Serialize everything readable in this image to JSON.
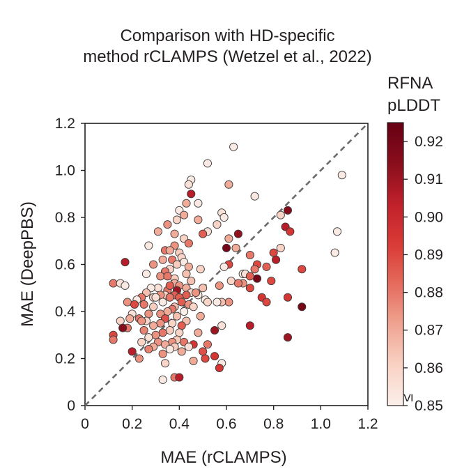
{
  "colors": {
    "cmap": [
      "#fbefea",
      "#f9d2c4",
      "#f0a592",
      "#e56b5d",
      "#d93a35",
      "#c0202b",
      "#880d1c",
      "#660013"
    ],
    "point_edge": "#3a3a3a",
    "diagonal": "#6b6b6b",
    "axis": "#231f20"
  },
  "chart_data": {
    "type": "scatter",
    "title": [
      "Comparison with HD-specific",
      "method rCLAMPS (Wetzel et al., 2022)"
    ],
    "xlabel": "MAE (rCLAMPS)",
    "ylabel": "MAE (DeepPBS)",
    "xlim": [
      0,
      1.2
    ],
    "ylim": [
      0,
      1.2
    ],
    "x_ticks": [
      0,
      0.2,
      0.4,
      0.6,
      0.8,
      1.0,
      1.2
    ],
    "x_tick_labels": [
      "0",
      "0.2",
      "0.4",
      "0.6",
      "0.8",
      "1.0",
      "1.2"
    ],
    "y_ticks": [
      0,
      0.2,
      0.4,
      0.6,
      0.8,
      1.0,
      1.2
    ],
    "y_tick_labels": [
      "0",
      "0.2",
      "0.4",
      "0.6",
      "0.8",
      "1.0",
      "1.2"
    ],
    "reference_line": {
      "from": [
        0,
        0
      ],
      "to": [
        1.2,
        1.2
      ],
      "style": "dashed"
    },
    "colorbar": {
      "label": [
        "RFNA",
        "pLDDT"
      ],
      "range": [
        0.85,
        0.925
      ],
      "ticks": [
        0.85,
        0.86,
        0.87,
        0.88,
        0.89,
        0.9,
        0.91,
        0.92
      ],
      "tick_labels": [
        "0.85",
        "0.86",
        "0.87",
        "0.88",
        "0.89",
        "0.90",
        "0.91",
        "0.92"
      ],
      "min_marker": "≤"
    },
    "points": [
      [
        0.63,
        1.1,
        0.852
      ],
      [
        0.52,
        1.03,
        0.852
      ],
      [
        1.09,
        0.98,
        0.852
      ],
      [
        0.45,
        0.96,
        0.852
      ],
      [
        0.44,
        0.94,
        0.855
      ],
      [
        0.61,
        0.94,
        0.87
      ],
      [
        0.45,
        0.9,
        0.905
      ],
      [
        0.72,
        0.89,
        0.853
      ],
      [
        0.43,
        0.86,
        0.87
      ],
      [
        0.48,
        0.86,
        0.852
      ],
      [
        0.86,
        0.83,
        0.915
      ],
      [
        0.4,
        0.83,
        0.852
      ],
      [
        0.58,
        0.82,
        0.855
      ],
      [
        0.83,
        0.81,
        0.86
      ],
      [
        0.42,
        0.81,
        0.87
      ],
      [
        0.59,
        0.8,
        0.852
      ],
      [
        0.39,
        0.79,
        0.86
      ],
      [
        0.48,
        0.79,
        0.87
      ],
      [
        0.35,
        0.77,
        0.875
      ],
      [
        0.56,
        0.77,
        0.86
      ],
      [
        0.85,
        0.76,
        0.905
      ],
      [
        0.87,
        0.74,
        0.895
      ],
      [
        1.07,
        0.74,
        0.852
      ],
      [
        0.31,
        0.74,
        0.87
      ],
      [
        0.52,
        0.74,
        0.855
      ],
      [
        0.38,
        0.73,
        0.87
      ],
      [
        0.5,
        0.73,
        0.885
      ],
      [
        0.65,
        0.73,
        0.912
      ],
      [
        0.42,
        0.71,
        0.86
      ],
      [
        0.61,
        0.71,
        0.87
      ],
      [
        0.27,
        0.68,
        0.852
      ],
      [
        0.38,
        0.68,
        0.875
      ],
      [
        0.44,
        0.69,
        0.88
      ],
      [
        0.6,
        0.67,
        0.92
      ],
      [
        0.83,
        0.67,
        0.86
      ],
      [
        0.64,
        0.67,
        0.87
      ],
      [
        0.34,
        0.66,
        0.88
      ],
      [
        0.36,
        0.66,
        0.87
      ],
      [
        0.4,
        0.65,
        0.862
      ],
      [
        1.06,
        0.65,
        0.852
      ],
      [
        0.8,
        0.65,
        0.89
      ],
      [
        0.7,
        0.64,
        0.88
      ],
      [
        0.41,
        0.63,
        0.86
      ],
      [
        0.33,
        0.62,
        0.87
      ],
      [
        0.37,
        0.62,
        0.88
      ],
      [
        0.42,
        0.61,
        0.852
      ],
      [
        0.17,
        0.61,
        0.905
      ],
      [
        0.81,
        0.62,
        0.905
      ],
      [
        0.77,
        0.59,
        0.885
      ],
      [
        0.73,
        0.6,
        0.89
      ],
      [
        0.39,
        0.6,
        0.862
      ],
      [
        0.29,
        0.6,
        0.875
      ],
      [
        0.61,
        0.6,
        0.89
      ],
      [
        0.59,
        0.59,
        0.852
      ],
      [
        0.44,
        0.59,
        0.87
      ],
      [
        0.36,
        0.58,
        0.86
      ],
      [
        0.34,
        0.57,
        0.88
      ],
      [
        0.72,
        0.58,
        0.88
      ],
      [
        0.49,
        0.58,
        0.86
      ],
      [
        0.67,
        0.56,
        0.852
      ],
      [
        0.68,
        0.56,
        0.855
      ],
      [
        0.26,
        0.56,
        0.852
      ],
      [
        0.43,
        0.56,
        0.865
      ],
      [
        0.92,
        0.58,
        0.89
      ],
      [
        0.32,
        0.55,
        0.875
      ],
      [
        0.73,
        0.54,
        0.92
      ],
      [
        0.7,
        0.55,
        0.885
      ],
      [
        0.38,
        0.54,
        0.862
      ],
      [
        0.35,
        0.55,
        0.88
      ],
      [
        0.45,
        0.53,
        0.865
      ],
      [
        0.38,
        0.52,
        0.87
      ],
      [
        0.62,
        0.53,
        0.86
      ],
      [
        0.67,
        0.52,
        0.875
      ],
      [
        0.79,
        0.53,
        0.89
      ],
      [
        0.65,
        0.52,
        0.88
      ],
      [
        0.12,
        0.52,
        0.88
      ],
      [
        0.15,
        0.52,
        0.855
      ],
      [
        0.17,
        0.51,
        0.852
      ],
      [
        0.4,
        0.51,
        0.875
      ],
      [
        0.43,
        0.5,
        0.87
      ],
      [
        0.57,
        0.51,
        0.875
      ],
      [
        0.31,
        0.5,
        0.855
      ],
      [
        0.35,
        0.49,
        0.88
      ],
      [
        0.28,
        0.5,
        0.852
      ],
      [
        0.36,
        0.51,
        0.885
      ],
      [
        0.5,
        0.5,
        0.865
      ],
      [
        0.7,
        0.5,
        0.89
      ],
      [
        0.39,
        0.49,
        0.91
      ],
      [
        0.26,
        0.48,
        0.865
      ],
      [
        0.45,
        0.48,
        0.86
      ],
      [
        0.48,
        0.47,
        0.852
      ],
      [
        0.47,
        0.48,
        0.875
      ],
      [
        0.43,
        0.47,
        0.885
      ],
      [
        0.38,
        0.47,
        0.885
      ],
      [
        0.34,
        0.47,
        0.862
      ],
      [
        0.32,
        0.47,
        0.875
      ],
      [
        0.29,
        0.46,
        0.86
      ],
      [
        0.24,
        0.46,
        0.88
      ],
      [
        0.3,
        0.46,
        0.855
      ],
      [
        0.36,
        0.46,
        0.88
      ],
      [
        0.4,
        0.46,
        0.885
      ],
      [
        0.22,
        0.45,
        0.852
      ],
      [
        0.51,
        0.45,
        0.852
      ],
      [
        0.86,
        0.46,
        0.895
      ],
      [
        0.75,
        0.46,
        0.895
      ],
      [
        0.52,
        0.44,
        0.86
      ],
      [
        0.18,
        0.44,
        0.875
      ],
      [
        0.33,
        0.44,
        0.852
      ],
      [
        0.41,
        0.44,
        0.885
      ],
      [
        0.44,
        0.43,
        0.875
      ],
      [
        0.61,
        0.44,
        0.875
      ],
      [
        0.58,
        0.44,
        0.865
      ],
      [
        0.56,
        0.44,
        0.852
      ],
      [
        0.77,
        0.44,
        0.89
      ],
      [
        0.92,
        0.42,
        0.92
      ],
      [
        0.46,
        0.42,
        0.86
      ],
      [
        0.38,
        0.42,
        0.865
      ],
      [
        0.29,
        0.42,
        0.862
      ],
      [
        0.25,
        0.43,
        0.88
      ],
      [
        0.21,
        0.43,
        0.89
      ],
      [
        0.37,
        0.41,
        0.88
      ],
      [
        0.42,
        0.4,
        0.85
      ],
      [
        0.35,
        0.4,
        0.87
      ],
      [
        0.2,
        0.39,
        0.855
      ],
      [
        0.32,
        0.39,
        0.875
      ],
      [
        0.27,
        0.39,
        0.875
      ],
      [
        0.39,
        0.38,
        0.865
      ],
      [
        0.49,
        0.38,
        0.87
      ],
      [
        0.19,
        0.37,
        0.87
      ],
      [
        0.23,
        0.37,
        0.88
      ],
      [
        0.26,
        0.36,
        0.86
      ],
      [
        0.34,
        0.37,
        0.888
      ],
      [
        0.43,
        0.36,
        0.865
      ],
      [
        0.15,
        0.36,
        0.86
      ],
      [
        0.37,
        0.35,
        0.86
      ],
      [
        0.32,
        0.35,
        0.875
      ],
      [
        0.24,
        0.36,
        0.875
      ],
      [
        0.58,
        0.34,
        0.855
      ],
      [
        0.41,
        0.34,
        0.885
      ],
      [
        0.29,
        0.34,
        0.87
      ],
      [
        0.18,
        0.33,
        0.88
      ],
      [
        0.16,
        0.33,
        0.915
      ],
      [
        0.7,
        0.34,
        0.905
      ],
      [
        0.55,
        0.32,
        0.91
      ],
      [
        0.25,
        0.32,
        0.878
      ],
      [
        0.36,
        0.32,
        0.862
      ],
      [
        0.48,
        0.31,
        0.87
      ],
      [
        0.33,
        0.31,
        0.88
      ],
      [
        0.4,
        0.31,
        0.86
      ],
      [
        0.3,
        0.3,
        0.875
      ],
      [
        0.12,
        0.3,
        0.89
      ],
      [
        0.86,
        0.29,
        0.91
      ],
      [
        0.27,
        0.29,
        0.855
      ],
      [
        0.39,
        0.28,
        0.862
      ],
      [
        0.37,
        0.27,
        0.875
      ],
      [
        0.12,
        0.28,
        0.88
      ],
      [
        0.24,
        0.27,
        0.86
      ],
      [
        0.42,
        0.27,
        0.88
      ],
      [
        0.31,
        0.27,
        0.875
      ],
      [
        0.34,
        0.26,
        0.87
      ],
      [
        0.46,
        0.26,
        0.895
      ],
      [
        0.52,
        0.26,
        0.88
      ],
      [
        0.38,
        0.25,
        0.862
      ],
      [
        0.44,
        0.25,
        0.855
      ],
      [
        0.29,
        0.25,
        0.87
      ],
      [
        0.36,
        0.24,
        0.852
      ],
      [
        0.27,
        0.24,
        0.878
      ],
      [
        0.2,
        0.23,
        0.905
      ],
      [
        0.41,
        0.23,
        0.87
      ],
      [
        0.5,
        0.23,
        0.888
      ],
      [
        0.33,
        0.22,
        0.875
      ],
      [
        0.55,
        0.21,
        0.895
      ],
      [
        0.23,
        0.2,
        0.875
      ],
      [
        0.51,
        0.2,
        0.89
      ],
      [
        0.46,
        0.19,
        0.87
      ],
      [
        0.34,
        0.18,
        0.86
      ],
      [
        0.58,
        0.18,
        0.852
      ],
      [
        0.57,
        0.16,
        0.895
      ],
      [
        0.38,
        0.12,
        0.88
      ],
      [
        0.4,
        0.12,
        0.905
      ],
      [
        0.33,
        0.11,
        0.852
      ]
    ]
  }
}
